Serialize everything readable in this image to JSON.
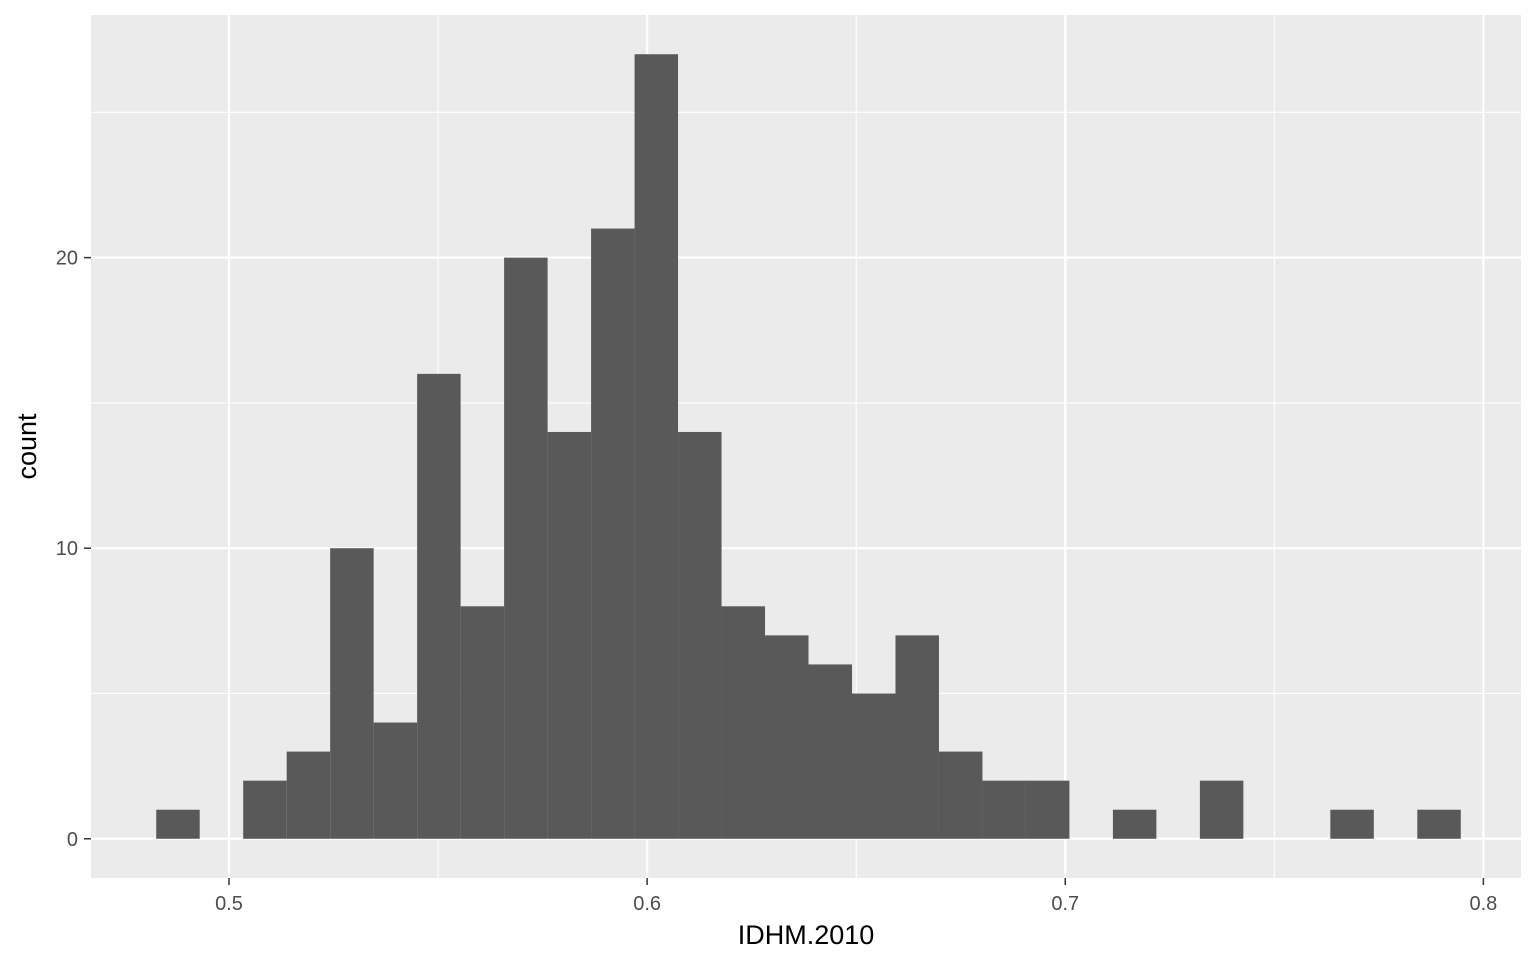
{
  "chart_data": {
    "type": "bar",
    "subtype": "histogram",
    "xlabel": "IDHM.2010",
    "ylabel": "count",
    "xlim": [
      0.467,
      0.809
    ],
    "ylim": [
      -1.35,
      28.35
    ],
    "x_ticks": [
      0.5,
      0.6,
      0.7,
      0.8
    ],
    "x_tick_labels": [
      "0.5",
      "0.6",
      "0.7",
      "0.8"
    ],
    "y_ticks": [
      0,
      10,
      20
    ],
    "y_tick_labels": [
      "0",
      "10",
      "20"
    ],
    "x_minor_ticks": [
      0.55,
      0.65,
      0.75
    ],
    "y_minor_ticks": [
      5,
      15,
      25
    ],
    "grid": true,
    "bin_width": 0.0104,
    "bins": [
      {
        "x0": 0.4826,
        "x1": 0.493,
        "count": 1
      },
      {
        "x0": 0.493,
        "x1": 0.5034,
        "count": 0
      },
      {
        "x0": 0.5034,
        "x1": 0.5138,
        "count": 2
      },
      {
        "x0": 0.5138,
        "x1": 0.5242,
        "count": 3
      },
      {
        "x0": 0.5242,
        "x1": 0.5346,
        "count": 10
      },
      {
        "x0": 0.5346,
        "x1": 0.545,
        "count": 4
      },
      {
        "x0": 0.545,
        "x1": 0.5554,
        "count": 16
      },
      {
        "x0": 0.5554,
        "x1": 0.5658,
        "count": 8
      },
      {
        "x0": 0.5658,
        "x1": 0.5762,
        "count": 20
      },
      {
        "x0": 0.5762,
        "x1": 0.5866,
        "count": 14
      },
      {
        "x0": 0.5866,
        "x1": 0.597,
        "count": 21
      },
      {
        "x0": 0.597,
        "x1": 0.6074,
        "count": 27
      },
      {
        "x0": 0.6074,
        "x1": 0.6178,
        "count": 14
      },
      {
        "x0": 0.6178,
        "x1": 0.6282,
        "count": 8
      },
      {
        "x0": 0.6282,
        "x1": 0.6386,
        "count": 7
      },
      {
        "x0": 0.6386,
        "x1": 0.649,
        "count": 6
      },
      {
        "x0": 0.649,
        "x1": 0.6594,
        "count": 5
      },
      {
        "x0": 0.6594,
        "x1": 0.6698,
        "count": 7
      },
      {
        "x0": 0.6698,
        "x1": 0.6802,
        "count": 3
      },
      {
        "x0": 0.6802,
        "x1": 0.6906,
        "count": 2
      },
      {
        "x0": 0.6906,
        "x1": 0.701,
        "count": 2
      },
      {
        "x0": 0.701,
        "x1": 0.7114,
        "count": 0
      },
      {
        "x0": 0.7114,
        "x1": 0.7218,
        "count": 1
      },
      {
        "x0": 0.7218,
        "x1": 0.7322,
        "count": 0
      },
      {
        "x0": 0.7322,
        "x1": 0.7426,
        "count": 2
      },
      {
        "x0": 0.7426,
        "x1": 0.753,
        "count": 0
      },
      {
        "x0": 0.753,
        "x1": 0.7634,
        "count": 0
      },
      {
        "x0": 0.7634,
        "x1": 0.7738,
        "count": 1
      },
      {
        "x0": 0.7738,
        "x1": 0.7842,
        "count": 0
      },
      {
        "x0": 0.7842,
        "x1": 0.7946,
        "count": 1
      }
    ],
    "colors": {
      "panel_background": "#ebebeb",
      "grid": "#ffffff",
      "bar_fill": "#595959",
      "tick_mark": "#333333",
      "tick_label": "#4d4d4d",
      "axis_title": "#000000"
    }
  }
}
